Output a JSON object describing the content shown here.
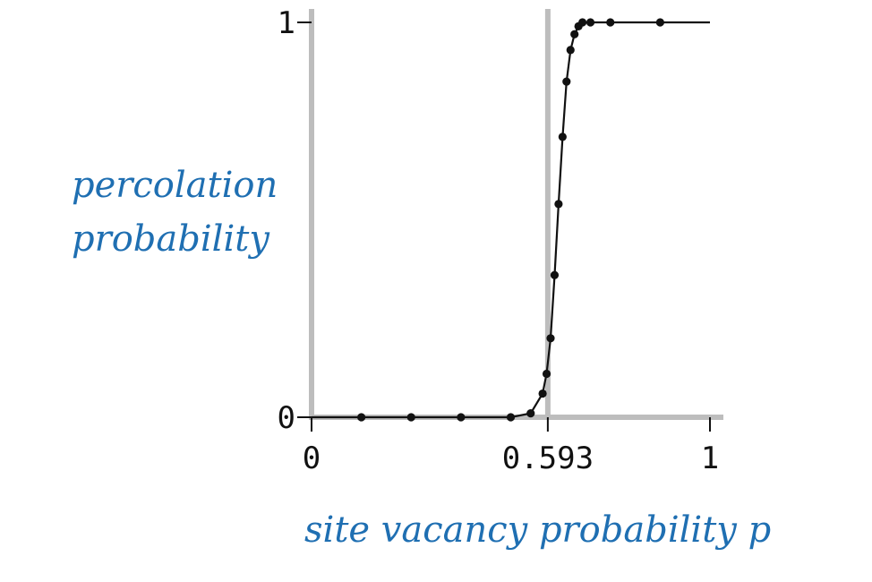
{
  "chart_data": {
    "type": "line",
    "title": "",
    "xlabel": "site vacancy probability p",
    "ylabel_lines": [
      "percolation",
      "probability"
    ],
    "xlim": [
      0,
      1
    ],
    "ylim": [
      0,
      1
    ],
    "x_ticks": [
      0,
      0.593,
      1
    ],
    "x_tick_labels": [
      "0",
      "0.593",
      "1"
    ],
    "y_ticks": [
      0,
      1
    ],
    "y_tick_labels": [
      "0",
      "1"
    ],
    "reference_line_x": 0.593,
    "grid": false,
    "series": [
      {
        "x": [
          0,
          0.125,
          0.25,
          0.375,
          0.5,
          0.55,
          0.58,
          0.59,
          0.6,
          0.61,
          0.62,
          0.63,
          0.64,
          0.65,
          0.66,
          0.67,
          0.68,
          0.7,
          0.75,
          0.875,
          1.0
        ],
        "y": [
          0,
          0,
          0,
          0,
          0,
          0.01,
          0.06,
          0.11,
          0.2,
          0.36,
          0.54,
          0.71,
          0.85,
          0.93,
          0.97,
          0.99,
          1,
          1,
          1,
          1,
          1
        ],
        "markers": [
          false,
          true,
          true,
          true,
          true,
          true,
          true,
          true,
          true,
          true,
          true,
          true,
          true,
          true,
          true,
          true,
          true,
          true,
          true,
          true,
          false
        ]
      }
    ]
  }
}
